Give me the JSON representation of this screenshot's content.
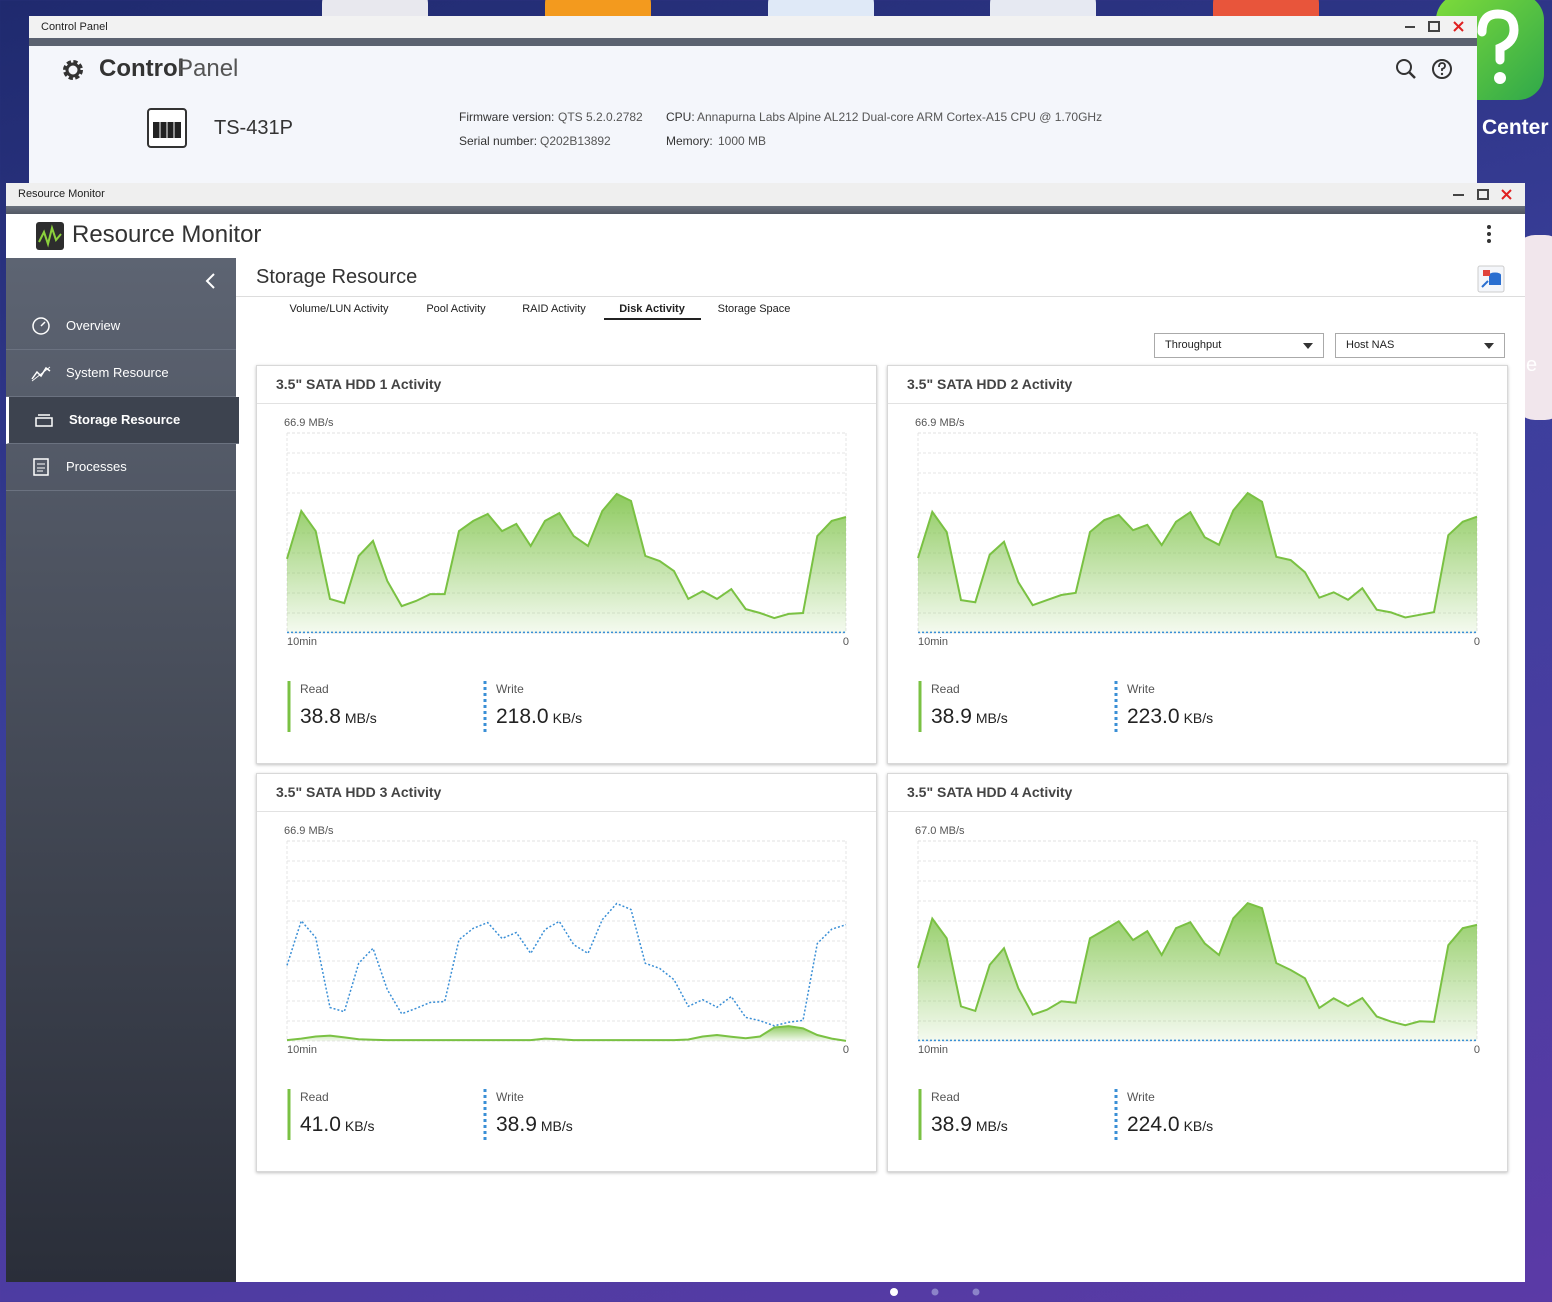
{
  "control_panel": {
    "window_title": "Control Panel",
    "title_bold": "Control",
    "title_light": "Panel",
    "model": "TS-431P",
    "firmware_label": "Firmware version:",
    "firmware": "QTS 5.2.0.2782",
    "serial_label": "Serial number:",
    "serial": "Q202B13892",
    "cpu_label": "CPU:",
    "cpu": "Annapurna Labs Alpine AL212 Dual-core ARM Cortex-A15 CPU @ 1.70GHz",
    "memory_label": "Memory:",
    "memory": "1000 MB"
  },
  "desktop": {
    "side_label": "Center",
    "side_label_2": "e"
  },
  "resource_monitor": {
    "window_title": "Resource Monitor",
    "app_title": "Resource Monitor",
    "nav": [
      "Overview",
      "System Resource",
      "Storage Resource",
      "Processes"
    ],
    "active_nav": 2,
    "section_title": "Storage Resource",
    "tabs": [
      "Volume/LUN Activity",
      "Pool Activity",
      "RAID Activity",
      "Disk Activity",
      "Storage Space"
    ],
    "active_tab": 3,
    "dropdowns": [
      "Throughput",
      "Host NAS"
    ],
    "disks": [
      {
        "title": "3.5\" SATA HDD 1 Activity",
        "ylim": [
          0,
          66.9
        ],
        "yticks": [
          {
            "value": 66.9,
            "label": "66.9 MB/s"
          }
        ],
        "x_start": "10min",
        "x_end": "0",
        "read": {
          "name": "Read",
          "current": "38.8",
          "unit": "MB/s",
          "color": "#7ac143",
          "values": [
            24.8,
            40.8,
            34.1,
            11.4,
            10.0,
            25.8,
            30.8,
            17.4,
            9.0,
            10.7,
            13.0,
            13.0,
            34.1,
            37.5,
            39.8,
            34.1,
            36.5,
            29.1,
            37.5,
            40.1,
            32.4,
            29.1,
            40.8,
            46.5,
            44.2,
            25.8,
            24.1,
            20.7,
            11.4,
            14.0,
            11.4,
            14.7,
            8.0,
            6.7,
            5.0,
            6.4,
            6.7,
            32.4,
            37.5,
            38.8
          ]
        },
        "write": {
          "name": "Write",
          "current": "218.0",
          "unit": "KB/s",
          "color": "#3a8fd6",
          "values": [
            0.2,
            0.2,
            0.2,
            0.2,
            0.2,
            0.2,
            0.2,
            0.2,
            0.2,
            0.2,
            0.2,
            0.2,
            0.2,
            0.2,
            0.2,
            0.2,
            0.2,
            0.2,
            0.2,
            0.2,
            0.2,
            0.2,
            0.2,
            0.2,
            0.2,
            0.2,
            0.2,
            0.2,
            0.2,
            0.2,
            0.2,
            0.2,
            0.2,
            0.2,
            0.2,
            0.2,
            0.2,
            0.2,
            0.2,
            0.22
          ]
        }
      },
      {
        "title": "3.5\" SATA HDD 2 Activity",
        "ylim": [
          0,
          66.9
        ],
        "yticks": [
          {
            "value": 66.9,
            "label": "66.9 MB/s"
          }
        ],
        "x_start": "10min",
        "x_end": "0",
        "read": {
          "name": "Read",
          "current": "38.9",
          "unit": "MB/s",
          "color": "#7ac143",
          "values": [
            25.1,
            40.5,
            33.8,
            11.0,
            10.3,
            26.2,
            30.5,
            17.0,
            9.3,
            11.0,
            12.7,
            13.4,
            33.8,
            37.8,
            39.5,
            34.4,
            36.2,
            29.4,
            37.2,
            40.4,
            32.0,
            29.5,
            41.0,
            46.8,
            43.9,
            25.5,
            24.4,
            20.3,
            11.8,
            13.6,
            11.1,
            15.0,
            7.8,
            6.9,
            5.2,
            6.1,
            7.0,
            32.7,
            37.2,
            38.9
          ]
        },
        "write": {
          "name": "Write",
          "current": "223.0",
          "unit": "KB/s",
          "color": "#3a8fd6",
          "values": [
            0.2,
            0.2,
            0.2,
            0.2,
            0.2,
            0.2,
            0.2,
            0.2,
            0.2,
            0.2,
            0.2,
            0.2,
            0.2,
            0.2,
            0.2,
            0.2,
            0.2,
            0.2,
            0.2,
            0.2,
            0.2,
            0.2,
            0.2,
            0.2,
            0.2,
            0.2,
            0.2,
            0.2,
            0.2,
            0.2,
            0.2,
            0.2,
            0.2,
            0.2,
            0.2,
            0.2,
            0.2,
            0.2,
            0.2,
            0.22
          ]
        }
      },
      {
        "title": "3.5\" SATA HDD 3 Activity",
        "ylim": [
          0,
          66.9
        ],
        "yticks": [
          {
            "value": 66.9,
            "label": "66.9 MB/s"
          }
        ],
        "x_start": "10min",
        "x_end": "0",
        "read": {
          "name": "Read",
          "current": "41.0",
          "unit": "KB/s",
          "color": "#7ac143",
          "values": [
            0.3,
            0.8,
            1.5,
            1.8,
            1.2,
            0.6,
            0.4,
            0.3,
            0.3,
            0.3,
            0.3,
            0.3,
            0.3,
            0.3,
            0.3,
            0.3,
            0.3,
            0.3,
            0.8,
            0.6,
            0.3,
            0.3,
            0.3,
            0.3,
            0.3,
            0.3,
            0.3,
            0.3,
            0.5,
            1.5,
            2.0,
            1.4,
            0.9,
            1.5,
            4.5,
            5.0,
            4.2,
            2.0,
            0.8,
            0.04
          ]
        },
        "write": {
          "name": "Write",
          "current": "38.9",
          "unit": "MB/s",
          "color": "#3a8fd6",
          "values": [
            25.3,
            40.2,
            34.6,
            11.2,
            9.8,
            26.0,
            31.0,
            17.2,
            9.1,
            10.9,
            12.9,
            13.2,
            33.9,
            37.7,
            39.6,
            34.3,
            36.3,
            29.3,
            37.3,
            40.0,
            32.2,
            29.3,
            40.6,
            46.0,
            44.0,
            26.0,
            24.3,
            20.5,
            11.6,
            13.8,
            11.3,
            14.9,
            7.9,
            6.8,
            5.1,
            6.3,
            6.9,
            32.6,
            37.4,
            38.9
          ]
        }
      },
      {
        "title": "3.5\" SATA HDD 4 Activity",
        "ylim": [
          0,
          67.0
        ],
        "yticks": [
          {
            "value": 67.0,
            "label": "67.0 MB/s"
          }
        ],
        "x_start": "10min",
        "x_end": "0",
        "read": {
          "name": "Read",
          "current": "38.9",
          "unit": "MB/s",
          "color": "#7ac143",
          "values": [
            24.5,
            41.0,
            34.4,
            11.6,
            10.1,
            25.5,
            31.1,
            17.7,
            8.8,
            10.5,
            13.3,
            12.8,
            34.4,
            37.2,
            40.1,
            33.8,
            36.8,
            28.8,
            37.8,
            39.8,
            32.7,
            28.8,
            41.1,
            46.2,
            44.5,
            26.1,
            23.8,
            21.0,
            11.1,
            14.3,
            11.7,
            14.4,
            8.2,
            6.5,
            5.3,
            6.6,
            6.4,
            32.1,
            37.8,
            38.9
          ]
        },
        "write": {
          "name": "Write",
          "current": "224.0",
          "unit": "KB/s",
          "color": "#3a8fd6",
          "values": [
            0.2,
            0.2,
            0.2,
            0.2,
            0.2,
            0.2,
            0.2,
            0.2,
            0.2,
            0.2,
            0.2,
            0.2,
            0.2,
            0.2,
            0.2,
            0.2,
            0.2,
            0.2,
            0.2,
            0.2,
            0.2,
            0.2,
            0.2,
            0.2,
            0.2,
            0.2,
            0.2,
            0.2,
            0.2,
            0.2,
            0.2,
            0.2,
            0.2,
            0.2,
            0.2,
            0.2,
            0.2,
            0.2,
            0.2,
            0.22
          ]
        }
      }
    ]
  }
}
